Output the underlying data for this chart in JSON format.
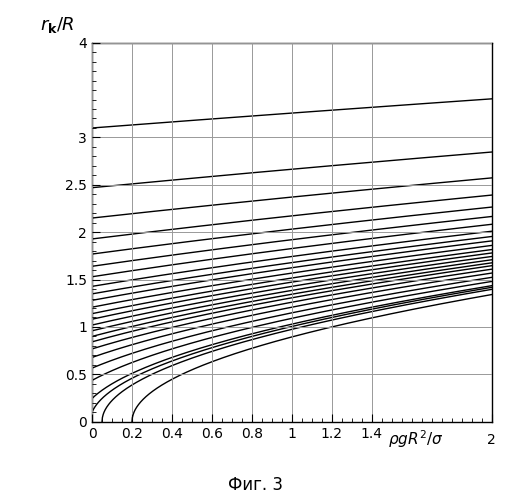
{
  "caption": "Фиг. 3",
  "xlim": [
    0,
    2
  ],
  "ylim": [
    0,
    4
  ],
  "xticks": [
    0,
    0.2,
    0.4,
    0.6,
    0.8,
    1.0,
    1.2,
    1.4,
    2.0
  ],
  "xtick_labels": [
    "0",
    "0.2",
    "0.4",
    "0.6",
    "0.8",
    "1",
    "1.2",
    "1.4",
    ""
  ],
  "yticks": [
    0,
    0.5,
    1.0,
    1.5,
    2.0,
    2.5,
    3.0,
    4.0
  ],
  "ytick_labels": [
    "0",
    "0.5",
    "1",
    "1.5",
    "2",
    "2.5",
    "3",
    "4"
  ],
  "line_color": "#000000",
  "line_width": 1.0,
  "y0_values": [
    3.1,
    2.47,
    2.15,
    1.93,
    1.77,
    1.64,
    1.53,
    1.43,
    1.35,
    1.28,
    1.21,
    1.14,
    1.08,
    1.02,
    0.96,
    0.9,
    0.84,
    0.77,
    0.68,
    0.57,
    0.44,
    0.25,
    0.1,
    0.04,
    0.0
  ],
  "figsize": [
    5.11,
    5.0
  ],
  "dpi": 100,
  "n_values": [
    9.61,
    6.1,
    4.62,
    3.72,
    3.13,
    2.69,
    2.34,
    2.04,
    1.82,
    1.64,
    1.46,
    1.3,
    1.17,
    1.04,
    0.92,
    0.81,
    0.71,
    0.59,
    0.46,
    0.32,
    0.19,
    0.06,
    0.01,
    -0.05,
    -0.2
  ]
}
